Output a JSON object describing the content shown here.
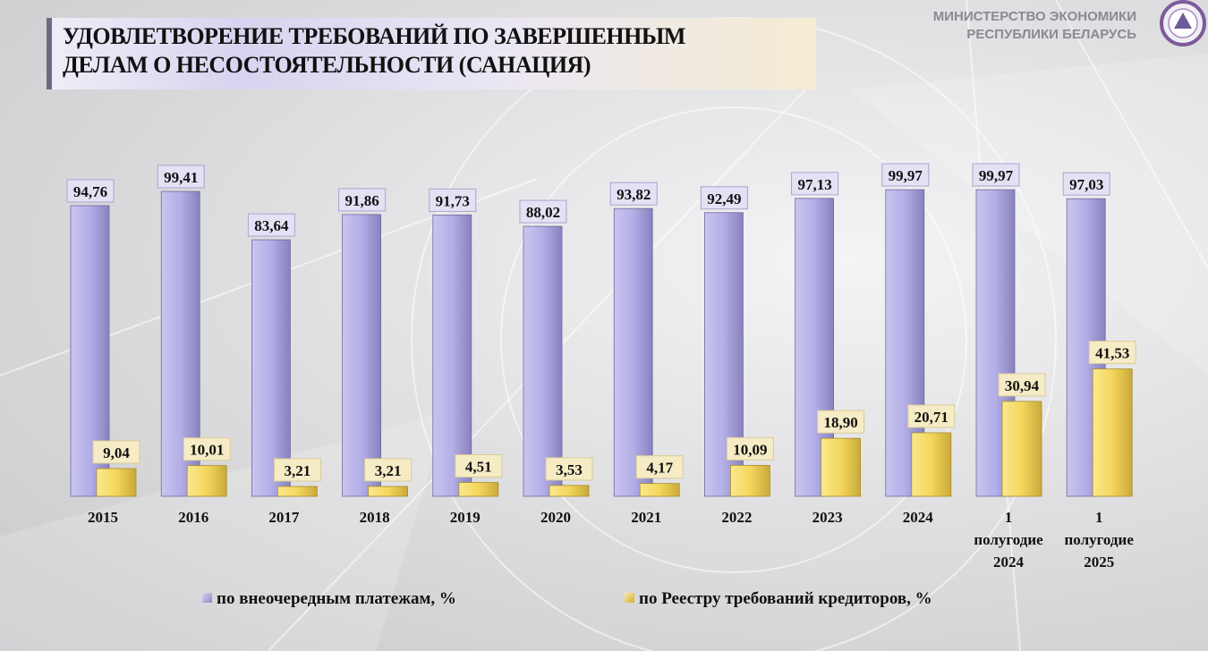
{
  "header": {
    "title_lines": [
      "УДОВЛЕТВОРЕНИЕ ТРЕБОВАНИЙ ПО ЗАВЕРШЕННЫМ",
      "ДЕЛАМ О НЕСОСТОЯТЕЛЬНОСТИ (САНАЦИЯ)"
    ],
    "ministry_lines": [
      "МИНИСТЕРСТВО ЭКОНОМИКИ",
      "РЕСПУБЛИКИ БЕЛАРУСЬ"
    ]
  },
  "colors": {
    "purple": "#b3aee6",
    "yellow": "#f3d65c"
  },
  "chart_data": {
    "type": "bar",
    "title": "УДОВЛЕТВОРЕНИЕ ТРЕБОВАНИЙ ПО ЗАВЕРШЕННЫМ ДЕЛАМ О НЕСОСТОЯТЕЛЬНОСТИ (САНАЦИЯ)",
    "categories": [
      [
        "2015"
      ],
      [
        "2016"
      ],
      [
        "2017"
      ],
      [
        "2018"
      ],
      [
        "2019"
      ],
      [
        "2020"
      ],
      [
        "2021"
      ],
      [
        "2022"
      ],
      [
        "2023"
      ],
      [
        "2024"
      ],
      [
        "1",
        "полугодие",
        "2024"
      ],
      [
        "1",
        "полугодие",
        "2025"
      ]
    ],
    "series": [
      {
        "name": "по внеочередным платежам, %",
        "values": [
          94.76,
          99.41,
          83.64,
          91.86,
          91.73,
          88.02,
          93.82,
          92.49,
          97.13,
          99.97,
          99.97,
          97.03
        ],
        "labels": [
          "94,76",
          "99,41",
          "83,64",
          "91,86",
          "91,73",
          "88,02",
          "93,82",
          "92,49",
          "97,13",
          "99,97",
          "99,97",
          "97,03"
        ]
      },
      {
        "name": "по Реестру требований кредиторов, %",
        "values": [
          9.04,
          10.01,
          3.21,
          3.21,
          4.51,
          3.53,
          4.17,
          10.09,
          18.9,
          20.71,
          30.94,
          41.53
        ],
        "labels": [
          "9,04",
          "10,01",
          "3,21",
          "3,21",
          "4,51",
          "3,53",
          "4,17",
          "10,09",
          "18,90",
          "20,71",
          "30,94",
          "41,53"
        ]
      }
    ],
    "ylim": [
      0,
      100
    ],
    "grid": false,
    "legend": "bottom"
  }
}
